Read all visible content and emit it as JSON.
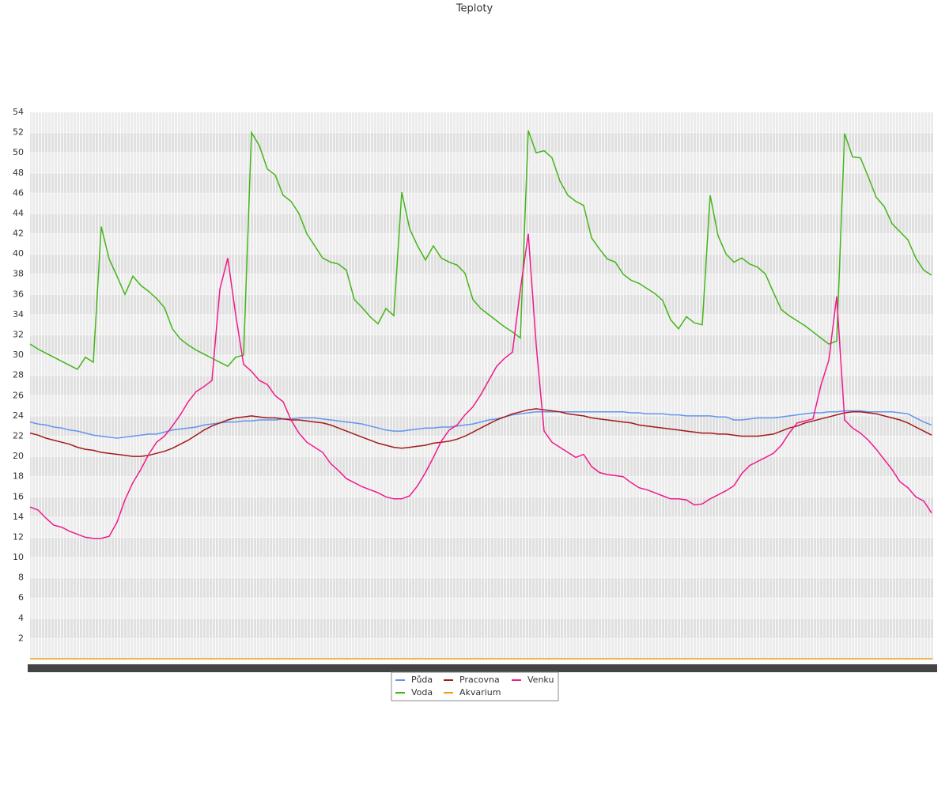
{
  "chart_data": {
    "type": "line",
    "title": "Teploty",
    "legend": "bottom",
    "grid": true,
    "ylim": [
      0,
      54
    ],
    "yticks": [
      2,
      4,
      6,
      8,
      10,
      12,
      14,
      16,
      18,
      20,
      22,
      24,
      26,
      28,
      30,
      32,
      34,
      36,
      38,
      40,
      42,
      44,
      46,
      48,
      50,
      52,
      54
    ],
    "categories": [
      null,
      null,
      null,
      null,
      null,
      null,
      null,
      null,
      null,
      null,
      null,
      null,
      null,
      null,
      null,
      null,
      null,
      null,
      null,
      null,
      null,
      null,
      null,
      null,
      null,
      null,
      null,
      null,
      null,
      null,
      null,
      null,
      null,
      null,
      null,
      null,
      null,
      null,
      null,
      null,
      null,
      null,
      null,
      null,
      null,
      null,
      null,
      null,
      null,
      null,
      null,
      null,
      null,
      null,
      null,
      null,
      null,
      null,
      null,
      null,
      null,
      null,
      null,
      null,
      null,
      null,
      null,
      null,
      null,
      null,
      null,
      null,
      null,
      null,
      null,
      null,
      null,
      null,
      null,
      null,
      null,
      null,
      null,
      null,
      null,
      null,
      null,
      null,
      null,
      null,
      null,
      null,
      null,
      null,
      null,
      null,
      null,
      null,
      null,
      null,
      null,
      null,
      null,
      null,
      null,
      null,
      null,
      null,
      null,
      null,
      null,
      null,
      null,
      null,
      null
    ],
    "series": [
      {
        "name": "Půda",
        "color": "#6495ed",
        "values": [
          23.4,
          23.2,
          23.1,
          22.9,
          22.8,
          22.6,
          22.5,
          22.3,
          22.1,
          22.0,
          21.9,
          21.8,
          21.9,
          22.0,
          22.1,
          22.2,
          22.2,
          22.4,
          22.6,
          22.7,
          22.8,
          22.9,
          23.1,
          23.2,
          23.3,
          23.4,
          23.4,
          23.5,
          23.5,
          23.6,
          23.6,
          23.6,
          23.7,
          23.7,
          23.8,
          23.8,
          23.8,
          23.7,
          23.6,
          23.5,
          23.4,
          23.3,
          23.2,
          23.0,
          22.8,
          22.6,
          22.5,
          22.5,
          22.6,
          22.7,
          22.8,
          22.8,
          22.9,
          22.9,
          23.0,
          23.1,
          23.2,
          23.4,
          23.6,
          23.7,
          23.9,
          24.1,
          24.2,
          24.3,
          24.4,
          24.4,
          24.4,
          24.4,
          24.4,
          24.4,
          24.4,
          24.4,
          24.4,
          24.4,
          24.4,
          24.4,
          24.3,
          24.3,
          24.2,
          24.2,
          24.2,
          24.1,
          24.1,
          24.0,
          24.0,
          24.0,
          24.0,
          23.9,
          23.9,
          23.6,
          23.6,
          23.7,
          23.8,
          23.8,
          23.8,
          23.9,
          24.0,
          24.1,
          24.2,
          24.3,
          24.3,
          24.4,
          24.4,
          24.5,
          24.5,
          24.5,
          24.4,
          24.4,
          24.4,
          24.4,
          24.3,
          24.2,
          23.8,
          23.4,
          23.1
        ]
      },
      {
        "name": "Voda",
        "color": "#44b51a",
        "values": [
          31.1,
          30.6,
          30.2,
          29.8,
          29.4,
          29.0,
          28.6,
          29.8,
          29.3,
          42.7,
          39.5,
          37.8,
          36.0,
          37.8,
          36.9,
          36.3,
          35.6,
          34.7,
          32.6,
          31.6,
          31.0,
          30.5,
          30.1,
          29.7,
          29.3,
          28.9,
          29.8,
          30.0,
          52.0,
          50.7,
          48.4,
          47.8,
          45.8,
          45.2,
          44.0,
          42.0,
          40.8,
          39.6,
          39.2,
          39.0,
          38.4,
          35.5,
          34.7,
          33.8,
          33.1,
          34.6,
          33.9,
          46.1,
          42.5,
          40.8,
          39.4,
          40.8,
          39.6,
          39.2,
          38.9,
          38.1,
          35.5,
          34.6,
          34.0,
          33.4,
          32.8,
          32.3,
          31.7,
          52.2,
          50.0,
          50.2,
          49.5,
          47.2,
          45.8,
          45.2,
          44.8,
          41.6,
          40.5,
          39.5,
          39.2,
          38.0,
          37.4,
          37.1,
          36.6,
          36.1,
          35.4,
          33.5,
          32.6,
          33.8,
          33.2,
          33.0,
          45.8,
          41.8,
          40.0,
          39.2,
          39.6,
          39.0,
          38.7,
          38.0,
          36.2,
          34.5,
          33.9,
          33.4,
          32.9,
          32.3,
          31.7,
          31.1,
          31.4,
          51.9,
          49.6,
          49.5,
          47.6,
          45.6,
          44.7,
          43.0,
          42.2,
          41.4,
          39.6,
          38.4,
          37.9
        ]
      },
      {
        "name": "Pracovna",
        "color": "#a31b1b",
        "values": [
          22.3,
          22.1,
          21.8,
          21.6,
          21.4,
          21.2,
          20.9,
          20.7,
          20.6,
          20.4,
          20.3,
          20.2,
          20.1,
          20.0,
          20.0,
          20.1,
          20.3,
          20.5,
          20.8,
          21.2,
          21.6,
          22.1,
          22.6,
          23.0,
          23.3,
          23.6,
          23.8,
          23.9,
          24.0,
          23.9,
          23.8,
          23.8,
          23.7,
          23.6,
          23.6,
          23.5,
          23.4,
          23.3,
          23.1,
          22.8,
          22.5,
          22.2,
          21.9,
          21.6,
          21.3,
          21.1,
          20.9,
          20.8,
          20.9,
          21.0,
          21.1,
          21.3,
          21.4,
          21.5,
          21.7,
          22.0,
          22.4,
          22.8,
          23.2,
          23.6,
          23.9,
          24.2,
          24.4,
          24.6,
          24.7,
          24.6,
          24.5,
          24.4,
          24.2,
          24.1,
          24.0,
          23.8,
          23.7,
          23.6,
          23.5,
          23.4,
          23.3,
          23.1,
          23.0,
          22.9,
          22.8,
          22.7,
          22.6,
          22.5,
          22.4,
          22.3,
          22.3,
          22.2,
          22.2,
          22.1,
          22.0,
          22.0,
          22.0,
          22.1,
          22.2,
          22.5,
          22.8,
          23.0,
          23.3,
          23.5,
          23.7,
          23.9,
          24.1,
          24.3,
          24.4,
          24.4,
          24.3,
          24.2,
          24.0,
          23.8,
          23.6,
          23.3,
          22.9,
          22.5,
          22.1
        ]
      },
      {
        "name": "Akvarium",
        "color": "#e8a317",
        "values": [
          0,
          0,
          0,
          0,
          0,
          0,
          0,
          0,
          0,
          0,
          0,
          0,
          0,
          0,
          0,
          0,
          0,
          0,
          0,
          0,
          0,
          0,
          0,
          0,
          0,
          0,
          0,
          0,
          0,
          0,
          0,
          0,
          0,
          0,
          0,
          0,
          0,
          0,
          0,
          0,
          0,
          0,
          0,
          0,
          0,
          0,
          0,
          0,
          0,
          0,
          0,
          0,
          0,
          0,
          0,
          0,
          0,
          0,
          0,
          0,
          0,
          0,
          0,
          0,
          0,
          0,
          0,
          0,
          0,
          0,
          0,
          0,
          0,
          0,
          0,
          0,
          0,
          0,
          0,
          0,
          0,
          0,
          0,
          0,
          0,
          0,
          0,
          0,
          0,
          0,
          0,
          0,
          0,
          0,
          0,
          0,
          0,
          0,
          0,
          0,
          0,
          0,
          0,
          0,
          0,
          0,
          0,
          0,
          0,
          0,
          0,
          0,
          0,
          0,
          0
        ]
      },
      {
        "name": "Venku",
        "color": "#f01a8c",
        "values": [
          15.0,
          14.7,
          13.9,
          13.2,
          13.0,
          12.6,
          12.3,
          12.0,
          11.9,
          11.9,
          12.1,
          13.5,
          15.7,
          17.4,
          18.7,
          20.2,
          21.4,
          22.0,
          23.0,
          24.1,
          25.4,
          26.4,
          26.9,
          27.5,
          36.5,
          39.6,
          34.0,
          29.1,
          28.4,
          27.5,
          27.1,
          26.0,
          25.4,
          23.6,
          22.3,
          21.4,
          20.9,
          20.4,
          19.3,
          18.6,
          17.8,
          17.4,
          17.0,
          16.7,
          16.4,
          16.0,
          15.8,
          15.8,
          16.1,
          17.1,
          18.4,
          19.9,
          21.5,
          22.6,
          23.1,
          24.1,
          24.9,
          26.1,
          27.5,
          28.9,
          29.7,
          30.3,
          36.5,
          42.0,
          31.0,
          22.5,
          21.4,
          20.9,
          20.4,
          19.9,
          20.2,
          19.0,
          18.4,
          18.2,
          18.1,
          18.0,
          17.4,
          16.9,
          16.7,
          16.4,
          16.1,
          15.8,
          15.8,
          15.7,
          15.2,
          15.3,
          15.8,
          16.2,
          16.6,
          17.1,
          18.3,
          19.1,
          19.5,
          19.9,
          20.3,
          21.1,
          22.3,
          23.3,
          23.5,
          23.7,
          27.0,
          29.5,
          35.8,
          23.6,
          22.8,
          22.3,
          21.6,
          20.7,
          19.7,
          18.7,
          17.5,
          16.9,
          16.0,
          15.6,
          14.4
        ]
      }
    ]
  }
}
